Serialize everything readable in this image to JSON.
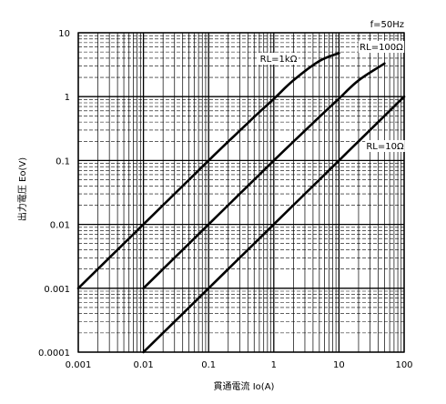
{
  "chart_data": {
    "type": "line",
    "x_scale": "log",
    "y_scale": "log",
    "xlim": [
      0.001,
      100
    ],
    "ylim": [
      0.0001,
      10
    ],
    "grid": true,
    "xlabel": "貫通電流 Io(A)",
    "ylabel": "出力電圧 Eo(V)",
    "annotation": "f=50Hz",
    "x_ticks": [
      "0.001",
      "0.01",
      "0.1",
      "1",
      "10",
      "100"
    ],
    "y_ticks": [
      "0.0001",
      "0.001",
      "0.01",
      "0.1",
      "1",
      "10"
    ],
    "series": [
      {
        "name": "RL=1kΩ",
        "x": [
          0.001,
          0.01,
          0.1,
          0.5,
          1,
          2,
          5,
          10
        ],
        "y": [
          0.001,
          0.01,
          0.1,
          0.48,
          0.92,
          1.8,
          3.6,
          4.8
        ]
      },
      {
        "name": "RL=100Ω",
        "x": [
          0.01,
          0.1,
          1,
          5,
          10,
          20,
          50
        ],
        "y": [
          0.001,
          0.01,
          0.1,
          0.48,
          0.93,
          1.8,
          3.3
        ]
      },
      {
        "name": "RL=10Ω",
        "x": [
          0.01,
          0.1,
          1,
          10,
          100
        ],
        "y": [
          0.0001,
          0.001,
          0.01,
          0.1,
          1
        ]
      }
    ]
  }
}
